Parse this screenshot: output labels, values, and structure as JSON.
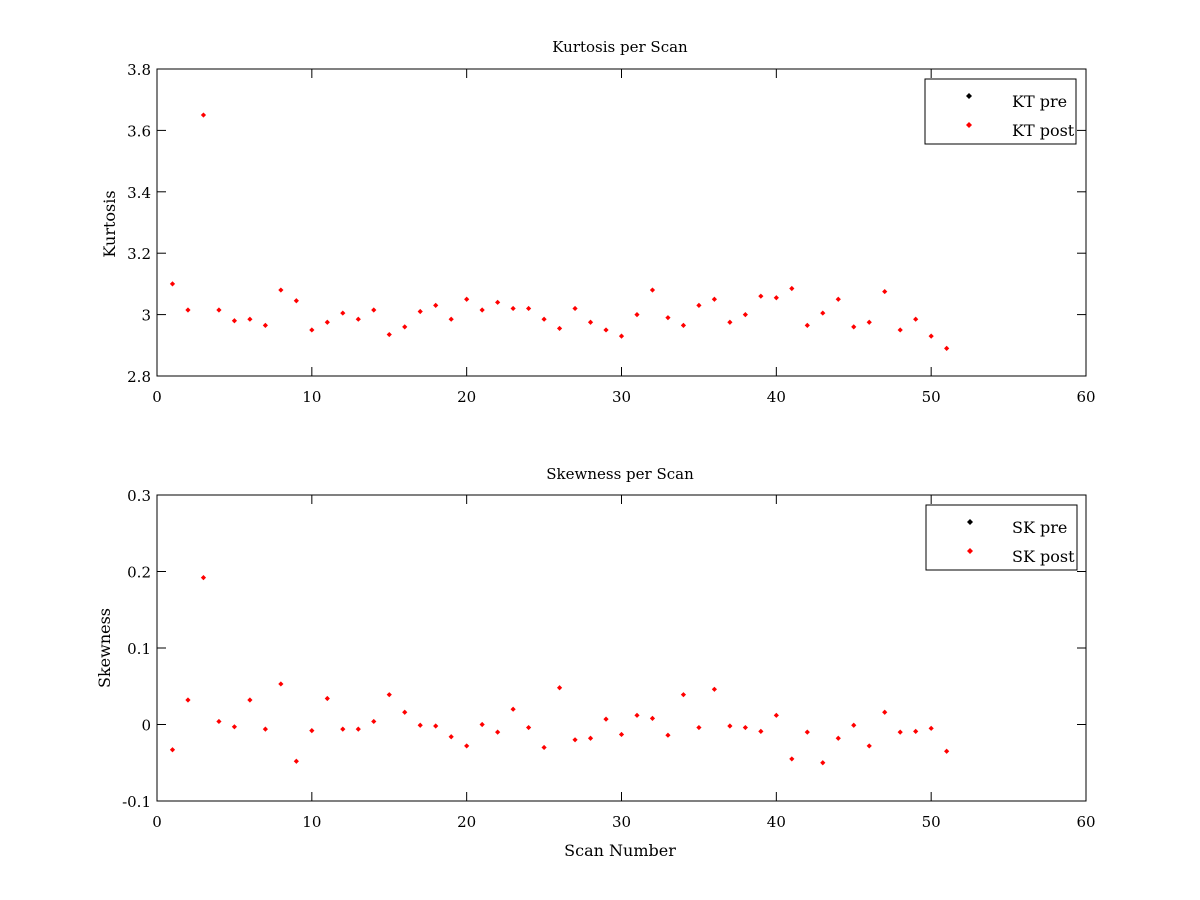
{
  "chart_data": [
    {
      "type": "scatter",
      "title": "Kurtosis per Scan",
      "xlabel": "",
      "ylabel": "Kurtosis",
      "xlim": [
        0,
        60
      ],
      "ylim": [
        2.8,
        3.8
      ],
      "x_ticks": [
        "0",
        "10",
        "20",
        "30",
        "40",
        "50",
        "60"
      ],
      "y_ticks": [
        "2.8",
        "3",
        "3.2",
        "3.4",
        "3.6",
        "3.8"
      ],
      "grid": false,
      "legend_position": "top-right",
      "series": [
        {
          "name": "KT pre",
          "color": "#000000",
          "x": [],
          "y": []
        },
        {
          "name": "KT post",
          "color": "#ff0000",
          "x": [
            1,
            2,
            3,
            4,
            5,
            6,
            7,
            8,
            9,
            10,
            11,
            12,
            13,
            14,
            15,
            16,
            17,
            18,
            19,
            20,
            21,
            22,
            23,
            24,
            25,
            26,
            27,
            28,
            29,
            30,
            31,
            32,
            33,
            34,
            35,
            36,
            37,
            38,
            39,
            40,
            41,
            42,
            43,
            44,
            45,
            46,
            47,
            48,
            49,
            50,
            51
          ],
          "y": [
            3.1,
            3.015,
            3.65,
            3.015,
            2.98,
            2.985,
            2.965,
            3.08,
            3.045,
            2.95,
            2.975,
            3.005,
            2.985,
            3.015,
            2.935,
            2.96,
            3.01,
            3.03,
            2.985,
            3.05,
            3.015,
            3.04,
            3.02,
            3.02,
            2.985,
            2.955,
            3.02,
            2.975,
            2.95,
            2.93,
            3.0,
            3.08,
            2.99,
            2.965,
            3.03,
            3.05,
            2.975,
            3.0,
            3.06,
            3.055,
            3.085,
            2.965,
            3.005,
            3.05,
            2.96,
            2.975,
            3.075,
            2.95,
            2.985,
            2.93,
            2.89
          ]
        }
      ]
    },
    {
      "type": "scatter",
      "title": "Skewness per Scan",
      "xlabel": "Scan Number",
      "ylabel": "Skewness",
      "xlim": [
        0,
        60
      ],
      "ylim": [
        -0.1,
        0.3
      ],
      "x_ticks": [
        "0",
        "10",
        "20",
        "30",
        "40",
        "50",
        "60"
      ],
      "y_ticks": [
        "-0.1",
        "0",
        "0.1",
        "0.2",
        "0.3"
      ],
      "grid": false,
      "legend_position": "top-right",
      "series": [
        {
          "name": "SK pre",
          "color": "#000000",
          "x": [],
          "y": []
        },
        {
          "name": "SK post",
          "color": "#ff0000",
          "x": [
            1,
            2,
            3,
            4,
            5,
            6,
            7,
            8,
            9,
            10,
            11,
            12,
            13,
            14,
            15,
            16,
            17,
            18,
            19,
            20,
            21,
            22,
            23,
            24,
            25,
            26,
            27,
            28,
            29,
            30,
            31,
            32,
            33,
            34,
            35,
            36,
            37,
            38,
            39,
            40,
            41,
            42,
            43,
            44,
            45,
            46,
            47,
            48,
            49,
            50,
            51
          ],
          "y": [
            -0.033,
            0.032,
            0.192,
            0.004,
            -0.003,
            0.032,
            -0.006,
            0.053,
            -0.048,
            -0.008,
            0.034,
            -0.006,
            -0.006,
            0.004,
            0.039,
            0.016,
            -0.001,
            -0.002,
            -0.016,
            -0.028,
            0.0,
            -0.01,
            0.02,
            -0.004,
            -0.03,
            0.048,
            -0.02,
            -0.018,
            0.007,
            -0.013,
            0.012,
            0.008,
            -0.014,
            0.039,
            -0.004,
            0.046,
            -0.002,
            -0.004,
            -0.009,
            0.012,
            -0.045,
            -0.01,
            -0.05,
            -0.018,
            -0.001,
            -0.028,
            0.016,
            -0.01,
            -0.009,
            -0.005,
            -0.035
          ]
        }
      ]
    }
  ]
}
